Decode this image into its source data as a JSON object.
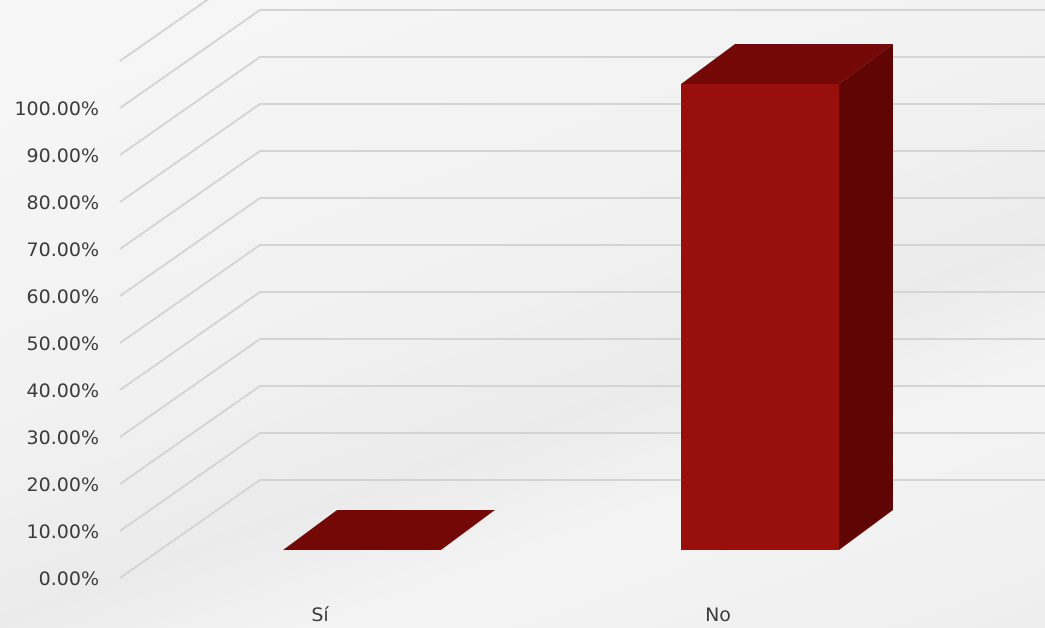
{
  "chart_data": {
    "type": "bar",
    "categories": [
      "Sí",
      "No"
    ],
    "values": [
      0,
      100
    ],
    "ylim": [
      0,
      100
    ],
    "y_ticks": [
      "0.00%",
      "10.00%",
      "20.00%",
      "30.00%",
      "40.00%",
      "50.00%",
      "60.00%",
      "70.00%",
      "80.00%",
      "90.00%",
      "100.00%"
    ],
    "grid": true,
    "style": "3d-column",
    "colors": {
      "front": "#990F0C",
      "top": "#730806",
      "side": "#5F0605"
    }
  }
}
